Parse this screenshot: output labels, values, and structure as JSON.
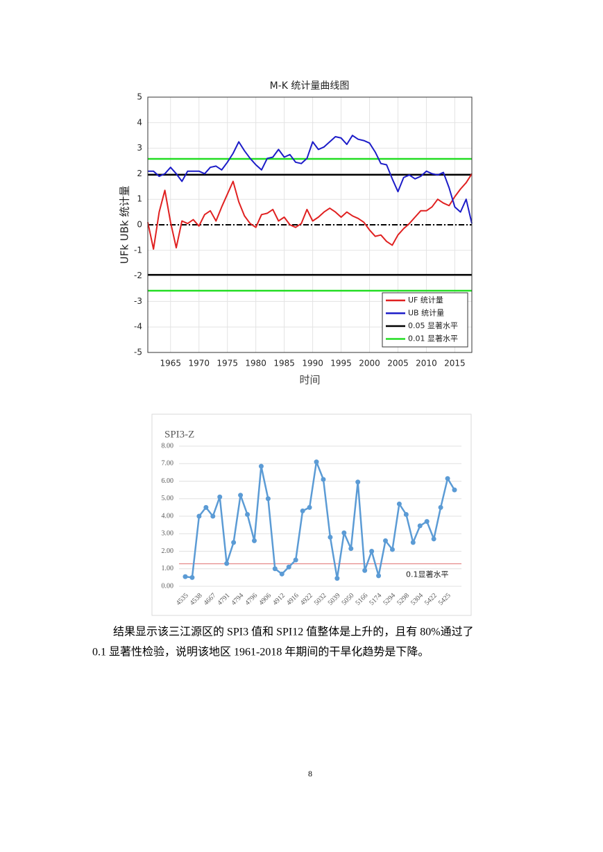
{
  "chart_data": [
    {
      "type": "line",
      "title": "M-K 统计量曲线图",
      "xlabel": "时间",
      "ylabel": "UFk UBk 统计量",
      "x": [
        1961,
        1962,
        1963,
        1964,
        1965,
        1966,
        1967,
        1968,
        1969,
        1970,
        1971,
        1972,
        1973,
        1974,
        1975,
        1976,
        1977,
        1978,
        1979,
        1980,
        1981,
        1982,
        1983,
        1984,
        1985,
        1986,
        1987,
        1988,
        1989,
        1990,
        1991,
        1992,
        1993,
        1994,
        1995,
        1996,
        1997,
        1998,
        1999,
        2000,
        2001,
        2002,
        2003,
        2004,
        2005,
        2006,
        2007,
        2008,
        2009,
        2010,
        2011,
        2012,
        2013,
        2014,
        2015,
        2016,
        2017,
        2018
      ],
      "series": [
        {
          "name": "UF 统计量",
          "color": "#e02020",
          "values": [
            0.1,
            -0.95,
            0.5,
            1.35,
            0.1,
            -0.9,
            0.15,
            0.05,
            0.2,
            -0.05,
            0.4,
            0.55,
            0.15,
            0.7,
            1.2,
            1.7,
            0.9,
            0.35,
            0.05,
            -0.1,
            0.4,
            0.45,
            0.6,
            0.15,
            0.3,
            0,
            -0.1,
            0.05,
            0.6,
            0.15,
            0.3,
            0.5,
            0.65,
            0.5,
            0.3,
            0.5,
            0.35,
            0.25,
            0.1,
            -0.2,
            -0.45,
            -0.4,
            -0.65,
            -0.8,
            -0.4,
            -0.15,
            0.05,
            0.3,
            0.55,
            0.55,
            0.7,
            1.0,
            0.85,
            0.75,
            1.1,
            1.4,
            1.65,
            2.0
          ]
        },
        {
          "name": "UB 统计量",
          "color": "#1c1cc8",
          "values": [
            2.1,
            2.1,
            1.9,
            2.0,
            2.25,
            2.0,
            1.7,
            2.1,
            2.1,
            2.1,
            2.0,
            2.25,
            2.3,
            2.15,
            2.45,
            2.8,
            3.25,
            2.9,
            2.6,
            2.35,
            2.15,
            2.6,
            2.65,
            2.95,
            2.65,
            2.75,
            2.45,
            2.4,
            2.6,
            3.25,
            2.95,
            3.05,
            3.25,
            3.45,
            3.4,
            3.15,
            3.5,
            3.35,
            3.3,
            3.2,
            2.85,
            2.4,
            2.35,
            1.8,
            1.3,
            1.85,
            1.95,
            1.8,
            1.9,
            2.1,
            2.0,
            1.95,
            2.05,
            1.45,
            0.7,
            0.5,
            1.0,
            0.05
          ]
        }
      ],
      "reference_lines": [
        {
          "name": "0.05 显著水平",
          "color": "#000000",
          "values": [
            1.96,
            -1.96
          ]
        },
        {
          "name": "0.01 显著水平",
          "color": "#22dd22",
          "values": [
            2.58,
            -2.58
          ]
        }
      ],
      "zero_line": true,
      "xlim": [
        1961,
        2018
      ],
      "xticks": [
        1965,
        1970,
        1975,
        1980,
        1985,
        1990,
        1995,
        2000,
        2005,
        2010,
        2015
      ],
      "ylim": [
        -5,
        5
      ],
      "yticks": [
        -5,
        -4,
        -3,
        -2,
        -1,
        0,
        1,
        2,
        3,
        4,
        5
      ],
      "grid": true,
      "legend": "lower right"
    },
    {
      "type": "line",
      "title": "SPI3-Z",
      "categories": [
        "4535",
        null,
        "4538",
        null,
        "4667",
        null,
        "4791",
        null,
        "4794",
        null,
        "4796",
        null,
        "4906",
        null,
        "4912",
        null,
        "4916",
        null,
        "4922",
        null,
        "5032",
        null,
        "5039",
        null,
        "5050",
        null,
        "5166",
        null,
        "5174",
        null,
        "5294",
        null,
        "5298",
        null,
        "5304",
        null,
        "5422",
        null,
        "5425",
        null
      ],
      "series": [
        {
          "name": "SPI3-Z",
          "color": "#5b9bd5",
          "values": [
            0.55,
            0.5,
            4.0,
            4.5,
            4.0,
            5.1,
            1.3,
            2.5,
            5.2,
            4.1,
            2.6,
            6.85,
            5.0,
            1.0,
            0.7,
            1.1,
            1.5,
            4.3,
            4.5,
            7.1,
            6.1,
            2.8,
            0.45,
            3.05,
            2.15,
            5.95,
            0.9,
            2.0,
            0.6,
            2.6,
            2.1,
            4.7,
            4.1,
            2.5,
            3.45,
            3.7,
            2.7,
            4.5,
            6.15,
            5.5
          ]
        }
      ],
      "reference_lines": [
        {
          "name": "0.1显著水平",
          "color": "#e07070",
          "values": [
            1.28
          ]
        }
      ],
      "markers": true,
      "ylim": [
        0,
        8
      ],
      "yticks": [
        {
          "value": 0,
          "label": "0.00"
        },
        {
          "value": 1,
          "label": "1.00"
        },
        {
          "value": 2,
          "label": "2.00"
        },
        {
          "value": 3,
          "label": "3.00"
        },
        {
          "value": 4,
          "label": "4.00"
        },
        {
          "value": 5,
          "label": "5.00"
        },
        {
          "value": 6,
          "label": "6.00"
        },
        {
          "value": 7,
          "label": "7.00"
        },
        {
          "value": 8,
          "label": "8.00"
        }
      ],
      "grid": true
    }
  ],
  "paragraph": [
    "结果显示该三江源区的 SPI3 值和 SPI12 值整体是上升的，且有 80%通过了",
    "0.1 显著性检验，说明该地区 1961-2018 年期间的干旱化趋势是下降。"
  ],
  "page_number": "8"
}
